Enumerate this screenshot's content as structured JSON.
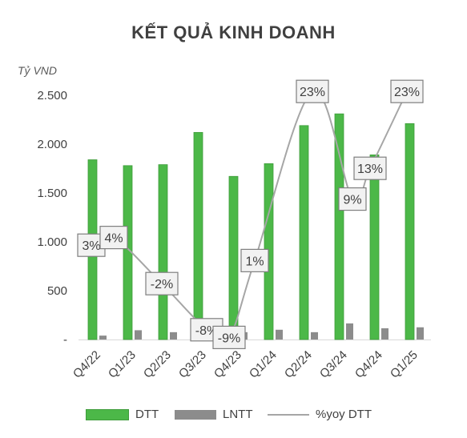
{
  "chart_data": {
    "type": "bar",
    "title": "KẾT QUẢ KINH DOANH",
    "ylabel": "Tỷ VND",
    "categories": [
      "Q4/22",
      "Q1/23",
      "Q2/23",
      "Q3/23",
      "Q4/23",
      "Q1/24",
      "Q2/24",
      "Q3/24",
      "Q4/24",
      "Q1/25"
    ],
    "ylim": [
      0,
      2500
    ],
    "yticks": [
      "-",
      "500",
      "1.000",
      "1.500",
      "2.000",
      "2.500"
    ],
    "yticks_values": [
      0,
      500,
      1000,
      1500,
      2000,
      2500
    ],
    "series": [
      {
        "name": "DTT",
        "kind": "bar",
        "color": "#4CB848",
        "values": [
          1840,
          1780,
          1790,
          2120,
          1670,
          1800,
          2190,
          2310,
          1890,
          2210
        ]
      },
      {
        "name": "LNTT",
        "kind": "bar",
        "color": "#8C8C8C",
        "values": [
          40,
          95,
          75,
          165,
          75,
          100,
          75,
          165,
          115,
          125
        ]
      },
      {
        "name": "%yoy DTT",
        "kind": "line",
        "color": "#A6A6A6",
        "labels": [
          "3%",
          "4%",
          "-2%",
          "-8%",
          "-9%",
          "1%",
          "23%",
          "9%",
          "13%",
          "23%"
        ],
        "values": [
          3,
          4,
          -2,
          -8,
          -9,
          1,
          23,
          9,
          13,
          23
        ]
      }
    ],
    "grid": false,
    "legend_position": "bottom"
  },
  "legend": {
    "dtt": "DTT",
    "lntt": "LNTT",
    "yoy": "%yoy DTT"
  }
}
